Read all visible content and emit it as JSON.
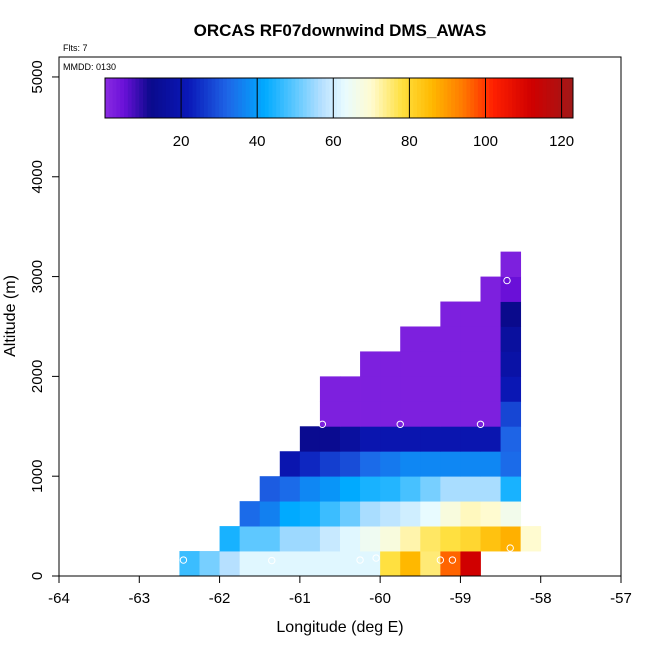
{
  "chart_data": {
    "type": "heatmap",
    "title": "ORCAS RF07downwind DMS_AWAS",
    "xlabel": "Longitude (deg E)",
    "ylabel": "Altitude (m)",
    "xlim": [
      -64,
      -57
    ],
    "ylim": [
      0,
      5200
    ],
    "xticks": [
      -64,
      -63,
      -62,
      -61,
      -60,
      -59,
      -58,
      -57
    ],
    "yticks": [
      0,
      1000,
      2000,
      3000,
      4000,
      5000
    ],
    "annotations": {
      "flights": "Flts: 7",
      "date": "MMDD: 0130"
    },
    "colorbar": {
      "range": [
        0,
        123
      ],
      "ticks": [
        20,
        40,
        60,
        80,
        100,
        120
      ],
      "separators": [
        20,
        40,
        60,
        80,
        100,
        120
      ],
      "stops": [
        {
          "v": 0,
          "c": "#8a2be2"
        },
        {
          "v": 5,
          "c": "#6a10d8"
        },
        {
          "v": 12,
          "c": "#0a0a8c"
        },
        {
          "v": 22,
          "c": "#0a18b8"
        },
        {
          "v": 32,
          "c": "#1e64e6"
        },
        {
          "v": 42,
          "c": "#00aaff"
        },
        {
          "v": 50,
          "c": "#5ec8ff"
        },
        {
          "v": 57,
          "c": "#b6e0ff"
        },
        {
          "v": 63,
          "c": "#e8fbff"
        },
        {
          "v": 70,
          "c": "#fffbd0"
        },
        {
          "v": 78,
          "c": "#ffe040"
        },
        {
          "v": 86,
          "c": "#ffb800"
        },
        {
          "v": 94,
          "c": "#ff7a00"
        },
        {
          "v": 102,
          "c": "#ff2000"
        },
        {
          "v": 112,
          "c": "#d00000"
        },
        {
          "v": 123,
          "c": "#a01818"
        }
      ]
    },
    "cell_size": {
      "lon": 0.25,
      "alt": 250
    },
    "cells": [
      {
        "lon": -62.5,
        "alt": 0,
        "v": 47
      },
      {
        "lon": -62.25,
        "alt": 0,
        "v": 52
      },
      {
        "lon": -62.0,
        "alt": 0,
        "v": 57
      },
      {
        "lon": -61.75,
        "alt": 0,
        "v": 62
      },
      {
        "lon": -61.5,
        "alt": 0,
        "v": 62
      },
      {
        "lon": -61.25,
        "alt": 0,
        "v": 62
      },
      {
        "lon": -61.0,
        "alt": 0,
        "v": 62
      },
      {
        "lon": -60.75,
        "alt": 0,
        "v": 62
      },
      {
        "lon": -60.5,
        "alt": 0,
        "v": 62
      },
      {
        "lon": -60.25,
        "alt": 0,
        "v": 62
      },
      {
        "lon": -60.0,
        "alt": 0,
        "v": 78
      },
      {
        "lon": -59.75,
        "alt": 0,
        "v": 86
      },
      {
        "lon": -59.5,
        "alt": 0,
        "v": 75
      },
      {
        "lon": -59.25,
        "alt": 0,
        "v": 96
      },
      {
        "lon": -59.0,
        "alt": 0,
        "v": 112
      },
      {
        "lon": -62.0,
        "alt": 250,
        "v": 44
      },
      {
        "lon": -61.75,
        "alt": 250,
        "v": 50
      },
      {
        "lon": -61.5,
        "alt": 250,
        "v": 50
      },
      {
        "lon": -61.25,
        "alt": 250,
        "v": 55
      },
      {
        "lon": -61.0,
        "alt": 250,
        "v": 55
      },
      {
        "lon": -60.75,
        "alt": 250,
        "v": 59
      },
      {
        "lon": -60.5,
        "alt": 250,
        "v": 62
      },
      {
        "lon": -60.25,
        "alt": 250,
        "v": 65
      },
      {
        "lon": -60.0,
        "alt": 250,
        "v": 68
      },
      {
        "lon": -59.75,
        "alt": 250,
        "v": 72
      },
      {
        "lon": -59.5,
        "alt": 250,
        "v": 76
      },
      {
        "lon": -59.25,
        "alt": 250,
        "v": 78
      },
      {
        "lon": -59.0,
        "alt": 250,
        "v": 80
      },
      {
        "lon": -58.75,
        "alt": 250,
        "v": 84
      },
      {
        "lon": -58.5,
        "alt": 250,
        "v": 87
      },
      {
        "lon": -58.25,
        "alt": 250,
        "v": 70
      },
      {
        "lon": -61.75,
        "alt": 500,
        "v": 33
      },
      {
        "lon": -61.5,
        "alt": 500,
        "v": 36
      },
      {
        "lon": -61.25,
        "alt": 500,
        "v": 42
      },
      {
        "lon": -61.0,
        "alt": 500,
        "v": 43
      },
      {
        "lon": -60.75,
        "alt": 500,
        "v": 47
      },
      {
        "lon": -60.5,
        "alt": 500,
        "v": 51
      },
      {
        "lon": -60.25,
        "alt": 500,
        "v": 56
      },
      {
        "lon": -60.0,
        "alt": 500,
        "v": 58
      },
      {
        "lon": -59.75,
        "alt": 500,
        "v": 60
      },
      {
        "lon": -59.5,
        "alt": 500,
        "v": 63
      },
      {
        "lon": -59.25,
        "alt": 500,
        "v": 68
      },
      {
        "lon": -59.0,
        "alt": 500,
        "v": 71
      },
      {
        "lon": -58.75,
        "alt": 500,
        "v": 70
      },
      {
        "lon": -58.5,
        "alt": 500,
        "v": 66
      },
      {
        "lon": -61.5,
        "alt": 750,
        "v": 31
      },
      {
        "lon": -61.25,
        "alt": 750,
        "v": 33
      },
      {
        "lon": -61.0,
        "alt": 750,
        "v": 37
      },
      {
        "lon": -60.75,
        "alt": 750,
        "v": 39
      },
      {
        "lon": -60.5,
        "alt": 750,
        "v": 42
      },
      {
        "lon": -60.25,
        "alt": 750,
        "v": 44
      },
      {
        "lon": -60.0,
        "alt": 750,
        "v": 45
      },
      {
        "lon": -59.75,
        "alt": 750,
        "v": 48
      },
      {
        "lon": -59.5,
        "alt": 750,
        "v": 52
      },
      {
        "lon": -59.25,
        "alt": 750,
        "v": 56
      },
      {
        "lon": -59.0,
        "alt": 750,
        "v": 56
      },
      {
        "lon": -58.75,
        "alt": 750,
        "v": 56
      },
      {
        "lon": -58.5,
        "alt": 750,
        "v": 44
      },
      {
        "lon": -61.25,
        "alt": 1000,
        "v": 20
      },
      {
        "lon": -61.0,
        "alt": 1000,
        "v": 24
      },
      {
        "lon": -60.75,
        "alt": 1000,
        "v": 27
      },
      {
        "lon": -60.5,
        "alt": 1000,
        "v": 29
      },
      {
        "lon": -60.25,
        "alt": 1000,
        "v": 33
      },
      {
        "lon": -60.0,
        "alt": 1000,
        "v": 35
      },
      {
        "lon": -59.75,
        "alt": 1000,
        "v": 37
      },
      {
        "lon": -59.5,
        "alt": 1000,
        "v": 37
      },
      {
        "lon": -59.25,
        "alt": 1000,
        "v": 37
      },
      {
        "lon": -59.0,
        "alt": 1000,
        "v": 37
      },
      {
        "lon": -58.75,
        "alt": 1000,
        "v": 37
      },
      {
        "lon": -58.5,
        "alt": 1000,
        "v": 33
      },
      {
        "lon": -61.0,
        "alt": 1250,
        "v": 13
      },
      {
        "lon": -60.75,
        "alt": 1250,
        "v": 13
      },
      {
        "lon": -60.5,
        "alt": 1250,
        "v": 16
      },
      {
        "lon": -60.25,
        "alt": 1250,
        "v": 20
      },
      {
        "lon": -60.0,
        "alt": 1250,
        "v": 20
      },
      {
        "lon": -59.75,
        "alt": 1250,
        "v": 20
      },
      {
        "lon": -59.5,
        "alt": 1250,
        "v": 20
      },
      {
        "lon": -59.25,
        "alt": 1250,
        "v": 20
      },
      {
        "lon": -59.0,
        "alt": 1250,
        "v": 20
      },
      {
        "lon": -58.75,
        "alt": 1250,
        "v": 20
      },
      {
        "lon": -58.5,
        "alt": 1250,
        "v": 32
      },
      {
        "lon": -60.75,
        "alt": 1500,
        "v": 2
      },
      {
        "lon": -60.5,
        "alt": 1500,
        "v": 2
      },
      {
        "lon": -60.25,
        "alt": 1500,
        "v": 2
      },
      {
        "lon": -60.0,
        "alt": 1500,
        "v": 2
      },
      {
        "lon": -59.75,
        "alt": 1500,
        "v": 2
      },
      {
        "lon": -59.5,
        "alt": 1500,
        "v": 2
      },
      {
        "lon": -59.25,
        "alt": 1500,
        "v": 2
      },
      {
        "lon": -59.0,
        "alt": 1500,
        "v": 2
      },
      {
        "lon": -58.75,
        "alt": 1500,
        "v": 2
      },
      {
        "lon": -58.5,
        "alt": 1500,
        "v": 28
      },
      {
        "lon": -60.75,
        "alt": 1750,
        "v": 2
      },
      {
        "lon": -60.5,
        "alt": 1750,
        "v": 2
      },
      {
        "lon": -60.25,
        "alt": 1750,
        "v": 2
      },
      {
        "lon": -60.0,
        "alt": 1750,
        "v": 2
      },
      {
        "lon": -59.75,
        "alt": 1750,
        "v": 2
      },
      {
        "lon": -59.5,
        "alt": 1750,
        "v": 2
      },
      {
        "lon": -59.25,
        "alt": 1750,
        "v": 2
      },
      {
        "lon": -59.0,
        "alt": 1750,
        "v": 2
      },
      {
        "lon": -58.75,
        "alt": 1750,
        "v": 2
      },
      {
        "lon": -58.5,
        "alt": 1750,
        "v": 21
      },
      {
        "lon": -60.25,
        "alt": 2000,
        "v": 2
      },
      {
        "lon": -60.0,
        "alt": 2000,
        "v": 2
      },
      {
        "lon": -59.75,
        "alt": 2000,
        "v": 2
      },
      {
        "lon": -59.5,
        "alt": 2000,
        "v": 2
      },
      {
        "lon": -59.25,
        "alt": 2000,
        "v": 2
      },
      {
        "lon": -59.0,
        "alt": 2000,
        "v": 2
      },
      {
        "lon": -58.75,
        "alt": 2000,
        "v": 2
      },
      {
        "lon": -58.5,
        "alt": 2000,
        "v": 18
      },
      {
        "lon": -59.75,
        "alt": 2250,
        "v": 2
      },
      {
        "lon": -59.5,
        "alt": 2250,
        "v": 2
      },
      {
        "lon": -59.25,
        "alt": 2250,
        "v": 2
      },
      {
        "lon": -59.0,
        "alt": 2250,
        "v": 2
      },
      {
        "lon": -58.75,
        "alt": 2250,
        "v": 2
      },
      {
        "lon": -58.5,
        "alt": 2250,
        "v": 16
      },
      {
        "lon": -59.25,
        "alt": 2500,
        "v": 2
      },
      {
        "lon": -59.0,
        "alt": 2500,
        "v": 2
      },
      {
        "lon": -58.75,
        "alt": 2500,
        "v": 2
      },
      {
        "lon": -58.5,
        "alt": 2500,
        "v": 12
      },
      {
        "lon": -58.75,
        "alt": 2750,
        "v": 2
      },
      {
        "lon": -58.5,
        "alt": 2750,
        "v": 5
      },
      {
        "lon": -58.5,
        "alt": 3000,
        "v": 2
      }
    ],
    "sample_points": [
      {
        "lon": -62.45,
        "alt": 160
      },
      {
        "lon": -61.35,
        "alt": 155
      },
      {
        "lon": -60.25,
        "alt": 160
      },
      {
        "lon": -60.05,
        "alt": 180
      },
      {
        "lon": -59.25,
        "alt": 160
      },
      {
        "lon": -59.1,
        "alt": 160
      },
      {
        "lon": -58.38,
        "alt": 280
      },
      {
        "lon": -60.72,
        "alt": 1520
      },
      {
        "lon": -59.75,
        "alt": 1520
      },
      {
        "lon": -58.75,
        "alt": 1520
      },
      {
        "lon": -58.42,
        "alt": 2960
      }
    ]
  }
}
